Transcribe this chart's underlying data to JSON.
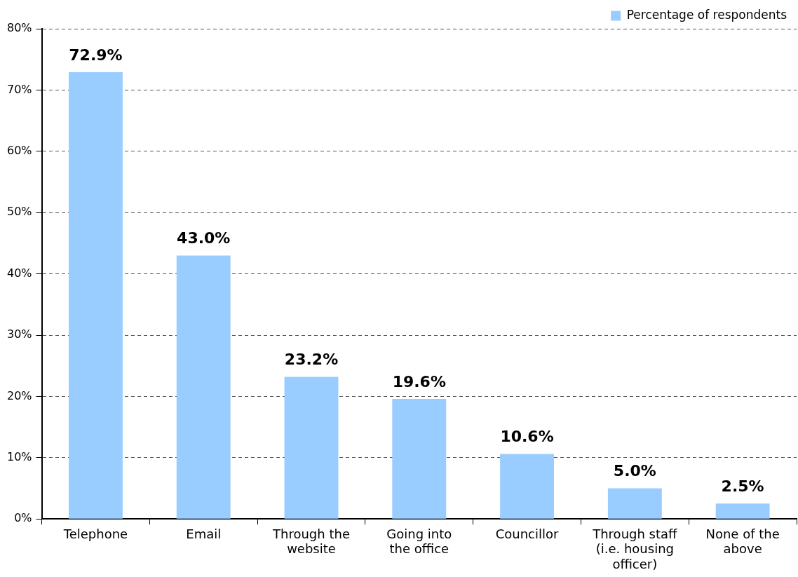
{
  "chart_data": {
    "type": "bar",
    "categories": [
      "Telephone",
      "Email",
      "Through the website",
      "Going into the office",
      "Councillor",
      "Through staff (i.e. housing officer)",
      "None of the above"
    ],
    "series": [
      {
        "name": "Percentage of respondents",
        "color": "#99ccff",
        "values": [
          72.9,
          43.0,
          23.2,
          19.6,
          10.6,
          5.0,
          2.5
        ],
        "value_labels": [
          "72.9%",
          "43.0%",
          "23.2%",
          "19.6%",
          "10.6%",
          "5.0%",
          "2.5%"
        ]
      }
    ],
    "ylim": [
      0,
      80
    ],
    "yticks": [
      {
        "value": 0,
        "label": "0%"
      },
      {
        "value": 10,
        "label": "10%"
      },
      {
        "value": 20,
        "label": "20%"
      },
      {
        "value": 30,
        "label": "30%"
      },
      {
        "value": 40,
        "label": "40%"
      },
      {
        "value": 50,
        "label": "50%"
      },
      {
        "value": 60,
        "label": "60%"
      },
      {
        "value": 70,
        "label": "70%"
      },
      {
        "value": 80,
        "label": "80%"
      }
    ],
    "grid": "y",
    "legend": "top right"
  }
}
